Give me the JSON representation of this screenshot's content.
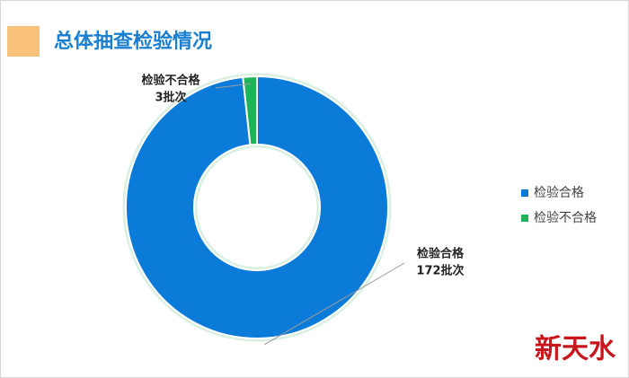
{
  "chart_data": {
    "type": "donut",
    "title": "总体抽查检验情况",
    "categories": [
      "检验合格",
      "检验不合格"
    ],
    "values": [
      172,
      3
    ],
    "value_labels": [
      "172批次",
      "3批次"
    ],
    "colors": [
      "#0b7bd9",
      "#1fb45c"
    ],
    "legend": "right"
  },
  "watermark": "新天水"
}
